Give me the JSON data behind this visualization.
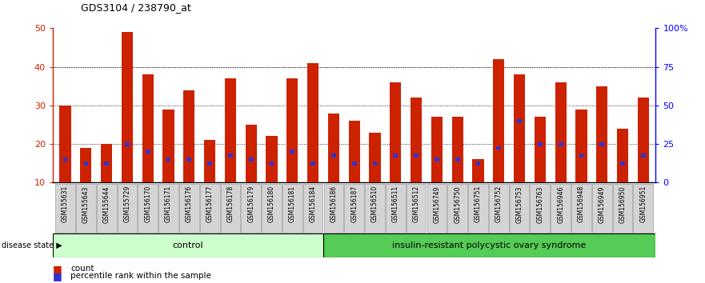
{
  "title": "GDS3104 / 238790_at",
  "samples": [
    "GSM155631",
    "GSM155643",
    "GSM155644",
    "GSM155729",
    "GSM156170",
    "GSM156171",
    "GSM156176",
    "GSM156177",
    "GSM156178",
    "GSM156179",
    "GSM156180",
    "GSM156181",
    "GSM156184",
    "GSM156186",
    "GSM156187",
    "GSM156510",
    "GSM156511",
    "GSM156512",
    "GSM156749",
    "GSM156750",
    "GSM156751",
    "GSM156752",
    "GSM156753",
    "GSM156763",
    "GSM156946",
    "GSM156948",
    "GSM156949",
    "GSM156950",
    "GSM156951"
  ],
  "count_values": [
    30,
    19,
    20,
    49,
    38,
    29,
    34,
    21,
    37,
    25,
    22,
    37,
    41,
    28,
    26,
    23,
    36,
    32,
    27,
    27,
    16,
    42,
    38,
    27,
    36,
    29,
    35,
    24,
    32
  ],
  "percentile_values": [
    16,
    15,
    15,
    20,
    18,
    16,
    16,
    15,
    17,
    16,
    15,
    18,
    15,
    17,
    15,
    15,
    17,
    17,
    16,
    16,
    15,
    19,
    26,
    20,
    20,
    17,
    20,
    15,
    17
  ],
  "control_count": 13,
  "group_labels": [
    "control",
    "insulin-resistant polycystic ovary syndrome"
  ],
  "bar_color": "#cc2200",
  "percentile_color": "#3333cc",
  "ylim_left": [
    10,
    50
  ],
  "ylim_right": [
    0,
    100
  ],
  "yticks_left": [
    10,
    20,
    30,
    40,
    50
  ],
  "yticks_right": [
    0,
    25,
    50,
    75,
    100
  ],
  "yticklabels_right": [
    "0",
    "25",
    "50",
    "75",
    "100%"
  ],
  "grid_ticks": [
    20,
    30,
    40
  ],
  "control_bg": "#ccffcc",
  "disease_bg": "#55cc55",
  "legend_count_label": "count",
  "legend_percentile_label": "percentile rank within the sample",
  "disease_state_label": "disease state"
}
